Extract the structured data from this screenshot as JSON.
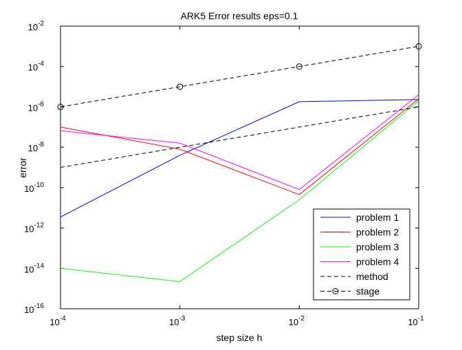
{
  "chart_data": {
    "type": "line",
    "title": "ARK5 Error results eps=0.1",
    "xlabel": "step size h",
    "ylabel": "error",
    "xscale": "log",
    "yscale": "log",
    "xlim": [
      0.0001,
      0.1
    ],
    "ylim": [
      1e-16,
      0.01
    ],
    "grid": false,
    "legend_position": "bottom-right",
    "x_ticks": [
      {
        "value": 0.0001,
        "base": "10",
        "exp": "-4"
      },
      {
        "value": 0.001,
        "base": "10",
        "exp": "-3"
      },
      {
        "value": 0.01,
        "base": "10",
        "exp": "-2"
      },
      {
        "value": 0.1,
        "base": "10",
        "exp": "-1"
      }
    ],
    "y_ticks": [
      {
        "value": 1e-16,
        "base": "10",
        "exp": "-16"
      },
      {
        "value": 1e-14,
        "base": "10",
        "exp": "-14"
      },
      {
        "value": 1e-12,
        "base": "10",
        "exp": "-12"
      },
      {
        "value": 1e-10,
        "base": "10",
        "exp": "-10"
      },
      {
        "value": 1e-08,
        "base": "10",
        "exp": "-8"
      },
      {
        "value": 1e-06,
        "base": "10",
        "exp": "-6"
      },
      {
        "value": 0.0001,
        "base": "10",
        "exp": "-4"
      },
      {
        "value": 0.01,
        "base": "10",
        "exp": "-2"
      }
    ],
    "x": [
      0.0001,
      0.001,
      0.01,
      0.1
    ],
    "series": [
      {
        "name": "problem 1",
        "color": "#0000ff",
        "dash": "solid",
        "marker": "none",
        "values": [
          3.5e-12,
          4e-09,
          1.8e-06,
          2.3e-06
        ]
      },
      {
        "name": "problem 2",
        "color": "#ff0000",
        "dash": "solid",
        "marker": "none",
        "values": [
          1e-07,
          8e-09,
          4.5e-11,
          2.5e-06
        ]
      },
      {
        "name": "problem 3",
        "color": "#00ff00",
        "dash": "solid",
        "marker": "none",
        "values": [
          1e-14,
          2.2e-15,
          2.5e-11,
          2e-06
        ]
      },
      {
        "name": "problem 4",
        "color": "#ff00ff",
        "dash": "solid",
        "marker": "none",
        "values": [
          6.5e-08,
          1.6e-08,
          8e-11,
          4e-06
        ]
      },
      {
        "name": "method",
        "color": "#000000",
        "dash": "dashed",
        "marker": "none",
        "values": [
          1e-09,
          1e-08,
          1e-07,
          1e-06
        ]
      },
      {
        "name": "stage",
        "color": "#000000",
        "dash": "dashed",
        "marker": "circle",
        "values": [
          1e-06,
          1e-05,
          0.0001,
          0.001
        ]
      }
    ]
  }
}
